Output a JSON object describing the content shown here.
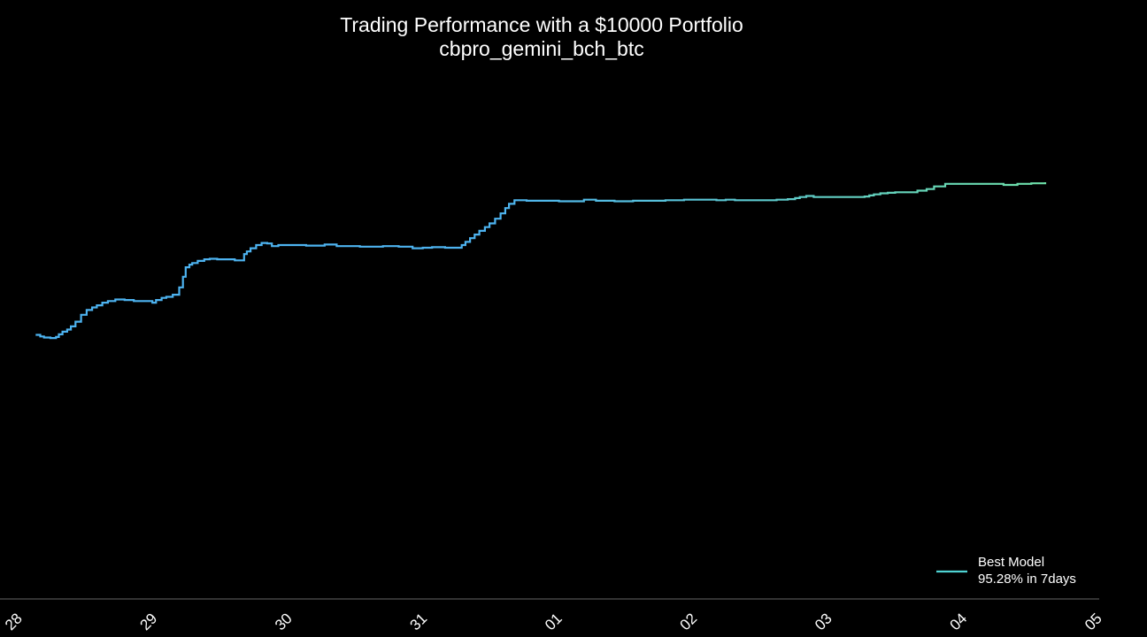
{
  "chart_data": {
    "type": "line",
    "title": "Trading Performance with a $10000 Portfolio",
    "subtitle": "cbpro_gemini_bch_btc",
    "xlabel": "",
    "ylabel": "",
    "x_tick_labels": [
      "28",
      "29",
      "30",
      "31",
      "01",
      "02",
      "03",
      "04",
      "05"
    ],
    "x_range_days": [
      0,
      8
    ],
    "y_range": [
      0,
      100
    ],
    "grid": false,
    "legend_position": "bottom-right",
    "legend": {
      "label_line1": "Best Model",
      "label_line2": "95.28% in 7days"
    },
    "colors": {
      "background": "#000000",
      "start": "#4db3f0",
      "end": "#6ee0a8",
      "legend_line": "#4fd3d3",
      "axis": "#666666",
      "text": "#ffffff"
    },
    "series": [
      {
        "x": [
          0.0,
          0.05,
          0.09,
          0.16,
          0.22,
          0.25,
          0.29,
          0.34,
          0.38,
          0.43,
          0.49,
          0.55,
          0.61,
          0.66,
          0.72,
          0.78,
          0.86,
          0.96,
          1.06,
          1.16,
          1.26,
          1.3,
          1.36,
          1.41,
          1.48,
          1.55,
          1.59,
          1.62,
          1.66,
          1.69,
          1.75,
          1.82,
          1.88,
          1.96,
          2.05,
          2.15,
          2.25,
          2.28,
          2.32,
          2.38,
          2.44,
          2.5,
          2.55,
          2.62,
          2.92,
          3.12,
          3.25,
          3.5,
          3.75,
          3.92,
          4.07,
          4.18,
          4.28,
          4.42,
          4.6,
          4.64,
          4.69,
          4.74,
          4.79,
          4.85,
          4.9,
          4.96,
          5.02,
          5.07,
          5.11,
          5.17,
          5.3,
          5.65,
          5.72,
          5.8,
          5.92,
          6.05,
          6.15,
          6.25,
          6.45,
          6.65,
          6.8,
          7.0,
          7.35,
          7.45,
          7.55,
          7.65,
          7.75,
          7.9,
          8.0,
          8.05,
          8.12,
          8.2,
          8.25,
          8.32,
          8.4,
          8.55,
          8.95,
          9.0,
          9.05,
          9.12,
          9.2,
          9.28,
          9.38,
          9.52,
          9.62,
          9.7,
          9.82,
          10.0,
          10.45,
          10.55,
          10.6,
          10.75,
          10.9
        ],
        "y": [
          50.0,
          49.7,
          49.5,
          49.4,
          49.6,
          50.1,
          50.6,
          51.0,
          51.6,
          52.5,
          53.8,
          54.7,
          55.2,
          55.6,
          56.1,
          56.4,
          56.7,
          56.6,
          56.4,
          56.4,
          56.1,
          56.6,
          57.0,
          57.2,
          57.6,
          59.0,
          61.0,
          62.8,
          63.3,
          63.6,
          64.0,
          64.3,
          64.4,
          64.3,
          64.3,
          64.1,
          65.3,
          65.8,
          66.4,
          67.0,
          67.4,
          67.3,
          66.8,
          67.0,
          66.9,
          67.1,
          66.8,
          66.7,
          66.8,
          66.7,
          66.4,
          66.5,
          66.6,
          66.5,
          67.0,
          67.6,
          68.3,
          69.0,
          69.7,
          70.4,
          71.1,
          72.0,
          73.0,
          74.0,
          74.8,
          75.5,
          75.4,
          75.3,
          75.3,
          75.3,
          75.6,
          75.4,
          75.4,
          75.3,
          75.4,
          75.4,
          75.5,
          75.6,
          75.5,
          75.6,
          75.5,
          75.5,
          75.5,
          75.5,
          75.6,
          75.6,
          75.7,
          75.9,
          76.1,
          76.3,
          76.1,
          76.1,
          76.2,
          76.4,
          76.6,
          76.8,
          76.9,
          77.0,
          77.0,
          77.3,
          77.6,
          78.1,
          78.6,
          78.6,
          78.4,
          78.4,
          78.6,
          78.7,
          78.9
        ]
      }
    ]
  }
}
